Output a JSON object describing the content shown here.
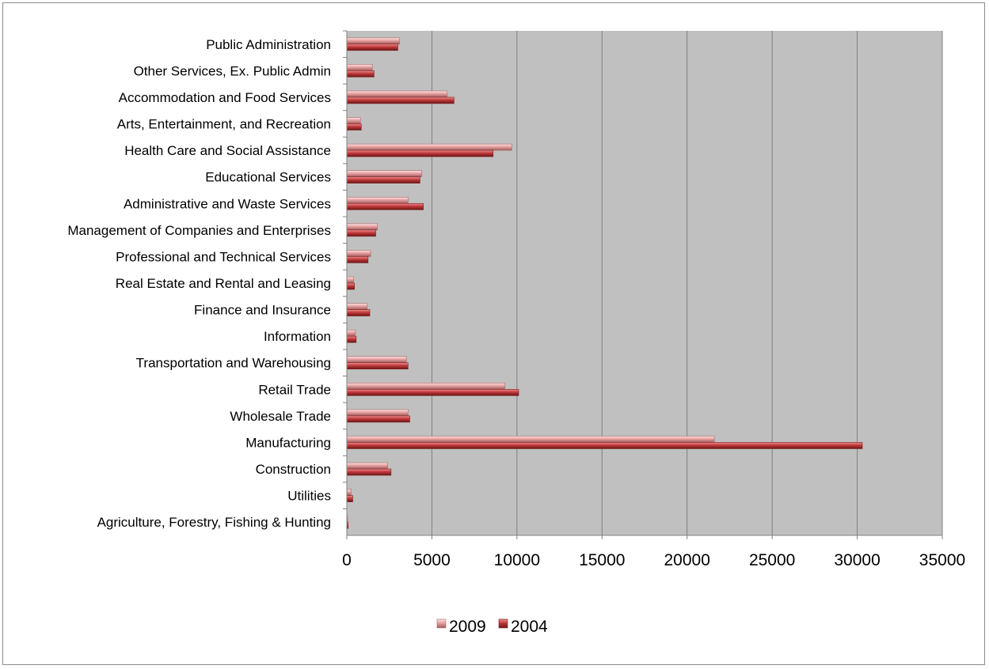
{
  "chart_data": {
    "type": "bar",
    "orientation": "horizontal",
    "categories": [
      "Agriculture, Forestry, Fishing & Hunting",
      "Utilities",
      "Construction",
      "Manufacturing",
      "Wholesale Trade",
      "Retail Trade",
      "Transportation and Warehousing",
      "Information",
      "Finance and Insurance",
      "Real Estate and Rental and Leasing",
      "Professional and Technical Services",
      "Management of Companies and Enterprises",
      "Administrative and Waste Services",
      "Educational Services",
      "Health Care and Social Assistance",
      "Arts, Entertainment, and Recreation",
      "Accommodation and Food Services",
      "Other Services, Ex. Public Admin",
      "Public Administration"
    ],
    "series": [
      {
        "name": "2009",
        "color": "#e8a0a0",
        "values": [
          50,
          250,
          2400,
          21600,
          3600,
          9300,
          3500,
          500,
          1200,
          400,
          1400,
          1800,
          3600,
          4400,
          9700,
          800,
          5900,
          1500,
          3100
        ]
      },
      {
        "name": "2004",
        "color": "#c0393b",
        "values": [
          80,
          350,
          2600,
          30300,
          3700,
          10100,
          3600,
          550,
          1350,
          450,
          1250,
          1700,
          4500,
          4300,
          8600,
          850,
          6300,
          1600,
          3000
        ]
      }
    ],
    "xlim": [
      0,
      35000
    ],
    "xticks": [
      "0",
      "5000",
      "10000",
      "15000",
      "20000",
      "25000",
      "30000",
      "35000"
    ],
    "grid": true,
    "plot_background": "#c0c0c0",
    "legend_position": "bottom"
  }
}
